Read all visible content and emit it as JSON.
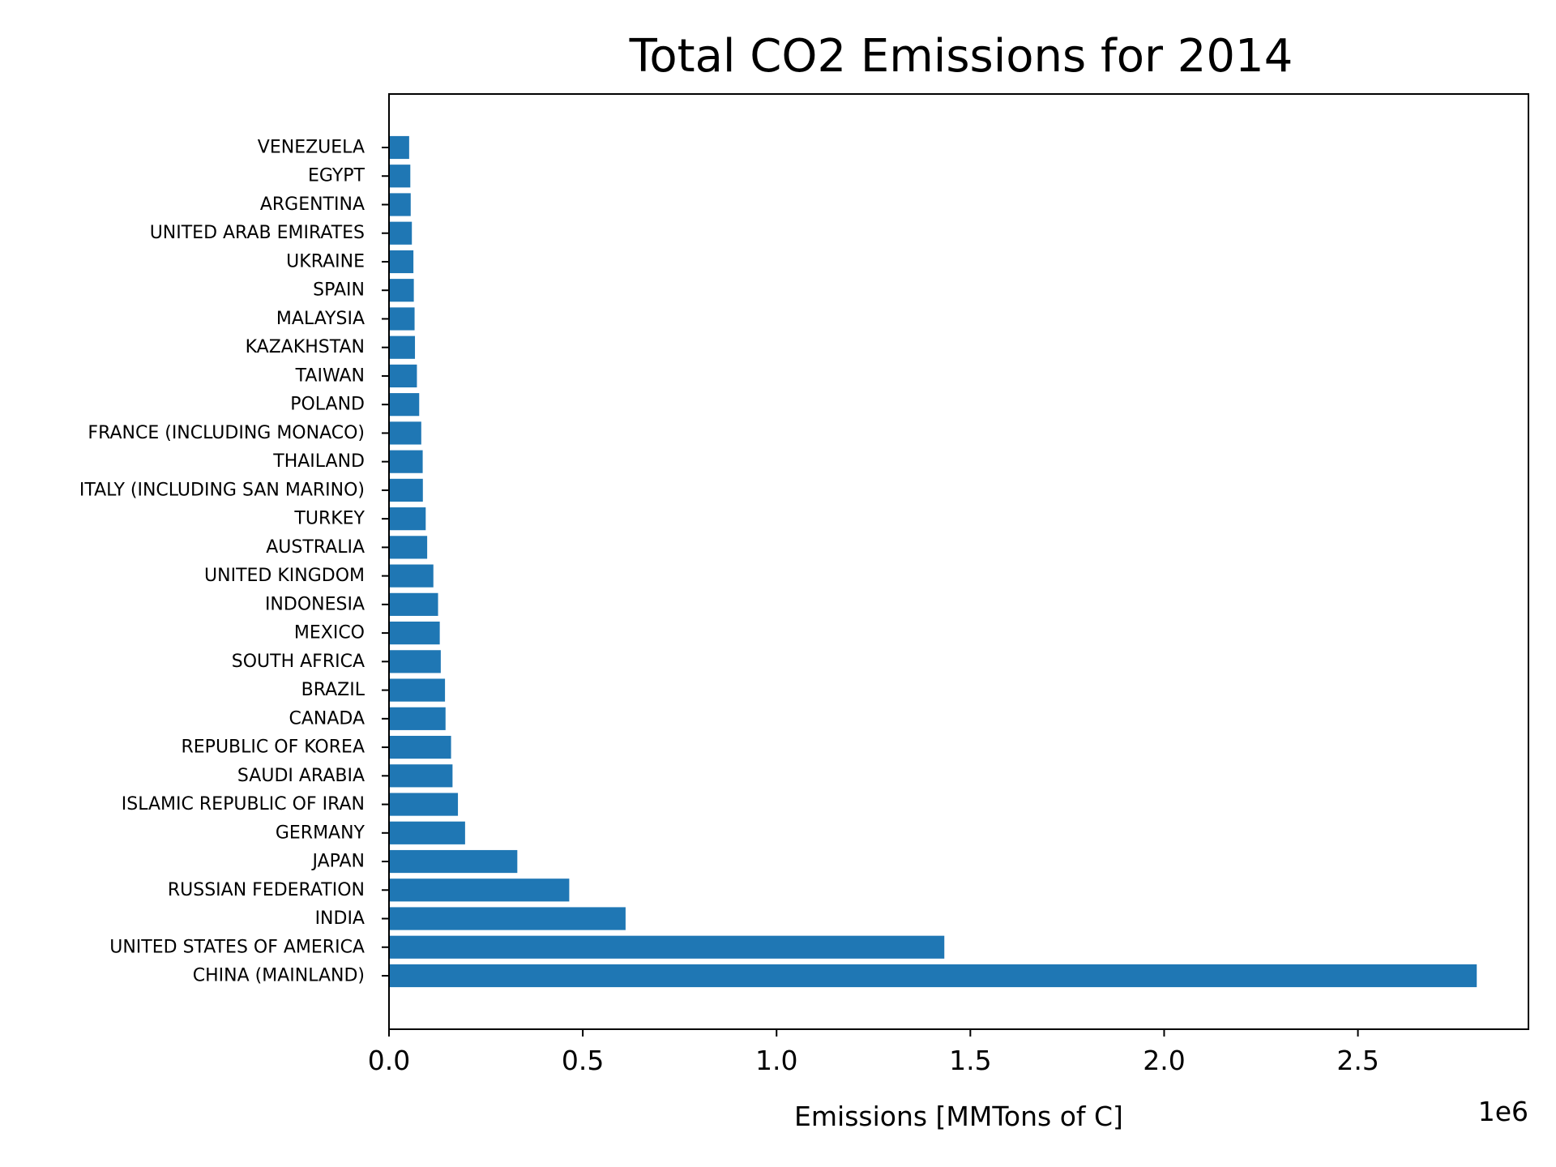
{
  "chart_data": {
    "type": "bar",
    "orientation": "horizontal",
    "title": "Total CO2 Emissions for 2014",
    "xlabel": "Emissions [MMTons of C]",
    "ylabel": "",
    "x_offset_label": "1e6",
    "x_scale_factor": 1000000,
    "xlim": [
      0,
      2940000
    ],
    "x_ticks": [
      0,
      500000,
      1000000,
      1500000,
      2000000,
      2500000
    ],
    "x_tick_labels": [
      "0.0",
      "0.5",
      "1.0",
      "1.5",
      "2.0",
      "2.5"
    ],
    "bar_color": "#1f77b4",
    "grid": false,
    "categories": [
      "CHINA (MAINLAND)",
      "UNITED STATES OF AMERICA",
      "INDIA",
      "RUSSIAN FEDERATION",
      "JAPAN",
      "GERMANY",
      "ISLAMIC REPUBLIC OF IRAN",
      "SAUDI ARABIA",
      "REPUBLIC OF KOREA",
      "CANADA",
      "BRAZIL",
      "SOUTH AFRICA",
      "MEXICO",
      "INDONESIA",
      "UNITED KINGDOM",
      "AUSTRALIA",
      "TURKEY",
      "ITALY (INCLUDING SAN MARINO)",
      "THAILAND",
      "FRANCE (INCLUDING MONACO)",
      "POLAND",
      "TAIWAN",
      "KAZAKHSTAN",
      "MALAYSIA",
      "SPAIN",
      "UKRAINE",
      "UNITED ARAB EMIRATES",
      "ARGENTINA",
      "EGYPT",
      "VENEZUELA"
    ],
    "values": [
      2806634,
      1432855,
      610411,
      465052,
      331074,
      196314,
      177868,
      163907,
      160119,
      145888,
      144480,
      133562,
      130971,
      126582,
      114486,
      98517,
      94710,
      87373,
      86953,
      83233,
      77922,
      72020,
      67000,
      66000,
      64000,
      63000,
      59000,
      56000,
      55000,
      52000
    ]
  }
}
